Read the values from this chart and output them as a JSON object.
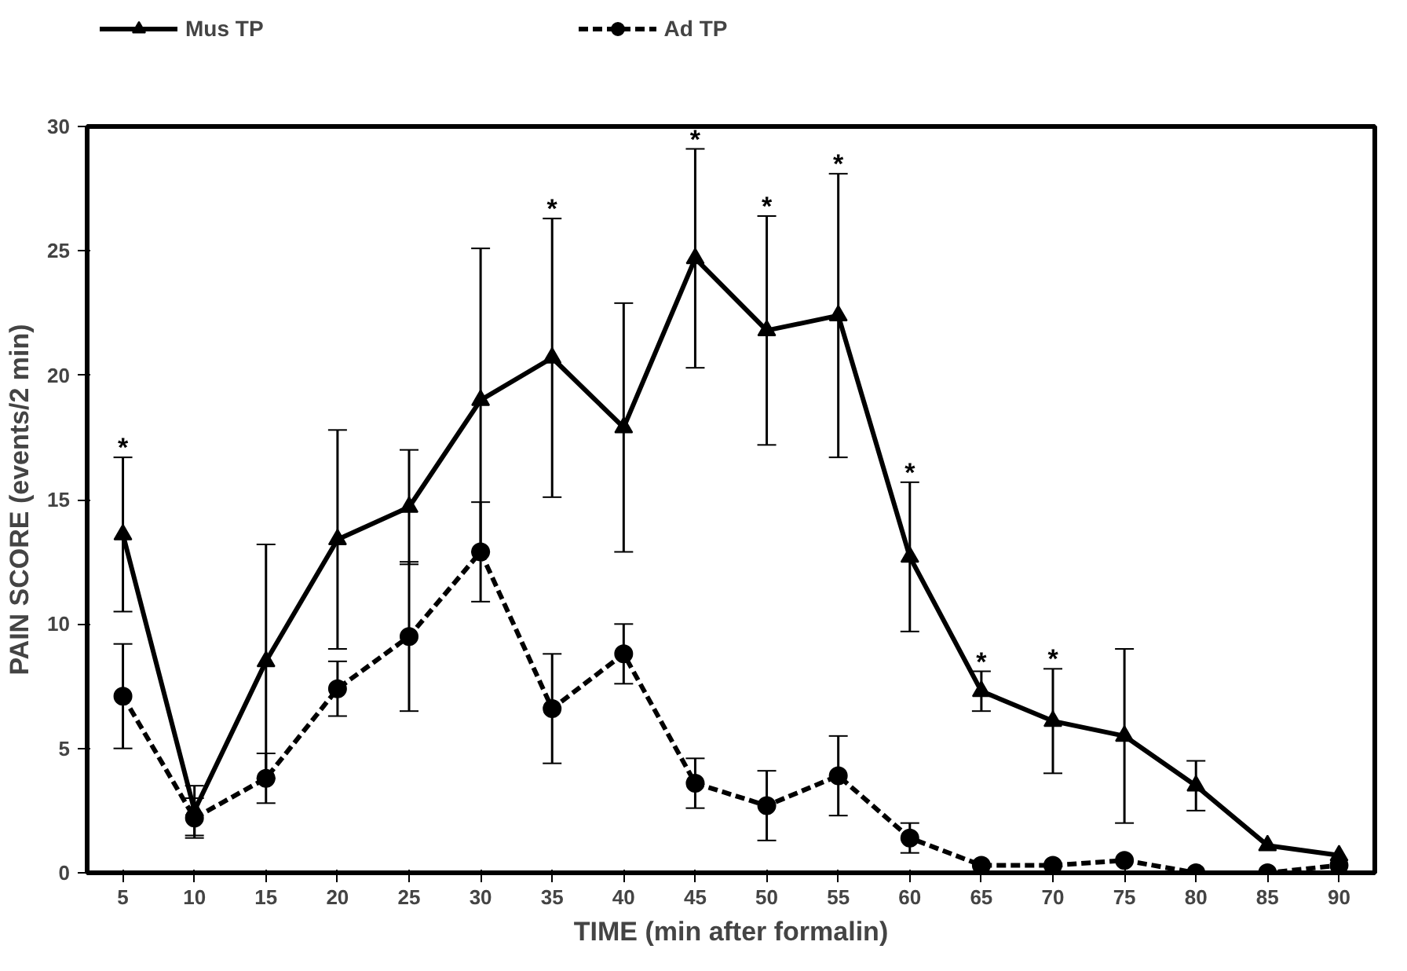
{
  "chart_data": {
    "type": "line",
    "xlabel": "TIME (min after formalin)",
    "ylabel": "PAIN SCORE (events/2 min)",
    "x": [
      5,
      10,
      15,
      20,
      25,
      30,
      35,
      40,
      45,
      50,
      55,
      60,
      65,
      70,
      75,
      80,
      85,
      90
    ],
    "xlim": [
      2.5,
      92.5
    ],
    "xticks": [
      5,
      10,
      15,
      20,
      25,
      30,
      35,
      40,
      45,
      50,
      55,
      60,
      65,
      70,
      75,
      80,
      85,
      90
    ],
    "ylim": [
      0,
      30
    ],
    "yticks": [
      0,
      5,
      10,
      15,
      20,
      25,
      30
    ],
    "grid": false,
    "legend": "top",
    "series": [
      {
        "name": "Mus TP",
        "color": "#000000",
        "marker": "triangle",
        "line_style": "solid",
        "values": [
          13.6,
          2.5,
          8.5,
          13.4,
          14.7,
          19.0,
          20.7,
          17.9,
          24.7,
          21.8,
          22.4,
          12.7,
          7.3,
          6.1,
          5.5,
          3.5,
          1.1,
          0.7
        ],
        "errors": [
          3.1,
          1,
          4.7,
          4.4,
          2.3,
          6.1,
          5.6,
          5,
          4.4,
          4.6,
          5.7,
          3,
          0.8,
          2.1,
          3.5,
          1,
          null,
          null
        ]
      },
      {
        "name": "Ad TP",
        "color": "#000000",
        "marker": "circle",
        "line_style": "dashed",
        "values": [
          7.1,
          2.2,
          3.8,
          7.4,
          9.5,
          12.9,
          6.6,
          8.8,
          3.6,
          2.7,
          3.9,
          1.4,
          0.3,
          0.3,
          0.5,
          0,
          0,
          0.3
        ],
        "errors": [
          2.1,
          0.8,
          1,
          1.1,
          3,
          2,
          2.2,
          1.2,
          1,
          1.4,
          1.6,
          0.6,
          null,
          null,
          null,
          null,
          null,
          null
        ]
      }
    ],
    "annotations": [
      {
        "text": "*",
        "x": 5,
        "y": 16.7
      },
      {
        "text": "*",
        "x": 35,
        "y": 26.3
      },
      {
        "text": "*",
        "x": 45,
        "y": 29.1
      },
      {
        "text": "*",
        "x": 50,
        "y": 26.4
      },
      {
        "text": "*",
        "x": 55,
        "y": 28.1
      },
      {
        "text": "*",
        "x": 60,
        "y": 15.7
      },
      {
        "text": "*",
        "x": 65,
        "y": 8.1
      },
      {
        "text": "*",
        "x": 70,
        "y": 8.2
      }
    ]
  }
}
